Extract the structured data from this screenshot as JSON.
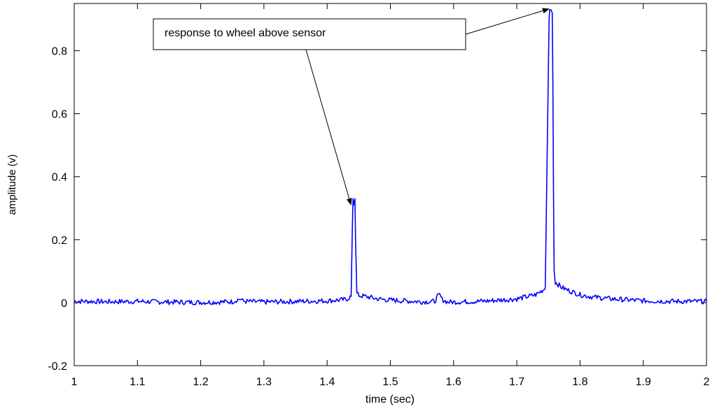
{
  "chart_data": {
    "type": "line",
    "title": "",
    "xlabel": "time (sec)",
    "ylabel": "amplitude (v)",
    "xlim": [
      1,
      2
    ],
    "ylim": [
      -0.2,
      0.95
    ],
    "xticks": [
      "1",
      "1.1",
      "1.2",
      "1.3",
      "1.4",
      "1.5",
      "1.6",
      "1.7",
      "1.8",
      "1.9",
      "2"
    ],
    "yticks": [
      "-0.2",
      "0",
      "0.2",
      "0.4",
      "0.6",
      "0.8"
    ],
    "grid": false,
    "line_color": "#0000ff",
    "series": [
      {
        "x": [
          1.0,
          1.05,
          1.1,
          1.15,
          1.2,
          1.25,
          1.262,
          1.266,
          1.27,
          1.3,
          1.35,
          1.4,
          1.43,
          1.438,
          1.44,
          1.441,
          1.442,
          1.444,
          1.445,
          1.447,
          1.449,
          1.452,
          1.46,
          1.48,
          1.5,
          1.52,
          1.55,
          1.57,
          1.575,
          1.578,
          1.582,
          1.59,
          1.6,
          1.65,
          1.7,
          1.73,
          1.745,
          1.749,
          1.751,
          1.752,
          1.754,
          1.756,
          1.757,
          1.758,
          1.759,
          1.761,
          1.764,
          1.77,
          1.78,
          1.8,
          1.82,
          1.85,
          1.9,
          1.95,
          2.0
        ],
        "y": [
          0.005,
          0.003,
          0.004,
          0.002,
          0.001,
          0.003,
          0.012,
          0.006,
          0.004,
          0.002,
          0.004,
          0.006,
          0.01,
          0.02,
          0.25,
          0.33,
          0.31,
          0.33,
          0.2,
          0.03,
          0.025,
          0.022,
          0.02,
          0.012,
          0.008,
          0.006,
          0.003,
          0.004,
          0.02,
          0.025,
          0.01,
          0.002,
          0.002,
          0.005,
          0.012,
          0.025,
          0.045,
          0.6,
          0.9,
          0.93,
          0.93,
          0.92,
          0.7,
          0.35,
          0.1,
          0.065,
          0.06,
          0.05,
          0.04,
          0.025,
          0.018,
          0.012,
          0.006,
          0.004,
          0.004
        ]
      }
    ],
    "annotation": {
      "text": "response to wheel above sensor",
      "arrow_targets": [
        {
          "x": 1.441,
          "y": 0.32
        },
        {
          "x": 1.753,
          "y": 0.935
        }
      ]
    }
  }
}
